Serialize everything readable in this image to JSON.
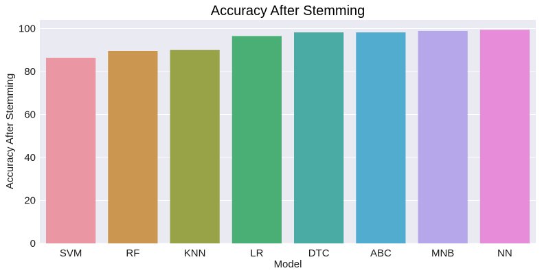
{
  "chart_data": {
    "type": "bar",
    "title": "Accuracy After Stemming",
    "xlabel": "Model",
    "ylabel": "Accuracy After Stemming",
    "categories": [
      "SVM",
      "RF",
      "KNN",
      "LR",
      "DTC",
      "ABC",
      "MNB",
      "NN"
    ],
    "values": [
      86.4,
      89.6,
      90.0,
      96.5,
      98.2,
      98.2,
      98.9,
      99.4
    ],
    "colors": [
      "#ea96a3",
      "#ca9650",
      "#98a246",
      "#4aaf74",
      "#4aaba5",
      "#52acd0",
      "#b6a7eb",
      "#e78cd9"
    ],
    "ylim": [
      0,
      104
    ],
    "yticks": [
      0,
      20,
      40,
      60,
      80,
      100
    ],
    "grid": true,
    "background": "#eaeaf2",
    "grid_color": "#ffffff"
  }
}
